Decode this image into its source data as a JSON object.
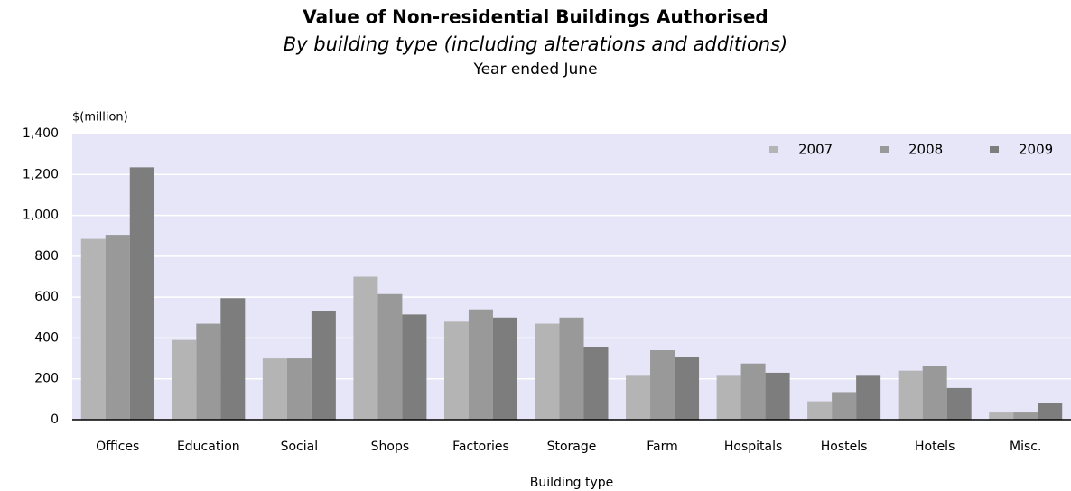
{
  "chart_data": {
    "type": "bar",
    "title": "Value of Non-residential Buildings Authorised",
    "subtitle": "By building type (including alterations and additions)",
    "subtitle2": "Year ended June",
    "y_label": "$(million)",
    "x_label": "Building type",
    "categories": [
      "Offices",
      "Education",
      "Social",
      "Shops",
      "Factories",
      "Storage",
      "Farm",
      "Hospitals",
      "Hostels",
      "Hotels",
      "Misc."
    ],
    "series": [
      {
        "name": "2007",
        "color": "#b4b4b4",
        "values": [
          885,
          390,
          300,
          700,
          480,
          470,
          215,
          215,
          90,
          240,
          35
        ]
      },
      {
        "name": "2008",
        "color": "#999999",
        "values": [
          905,
          470,
          300,
          615,
          540,
          500,
          340,
          275,
          135,
          265,
          35
        ]
      },
      {
        "name": "2009",
        "color": "#7d7d7d",
        "values": [
          1235,
          595,
          530,
          515,
          500,
          355,
          305,
          230,
          215,
          155,
          80
        ]
      }
    ],
    "ylim": [
      0,
      1400
    ],
    "yticks": [
      0,
      200,
      400,
      600,
      800,
      {
        "value": 1000,
        "label": "1,000"
      },
      {
        "value": 1200,
        "label": "1,200"
      },
      {
        "value": 1400,
        "label": "1,400"
      }
    ],
    "grid": true,
    "legend": "upper right",
    "background": "#e6e6f8"
  }
}
